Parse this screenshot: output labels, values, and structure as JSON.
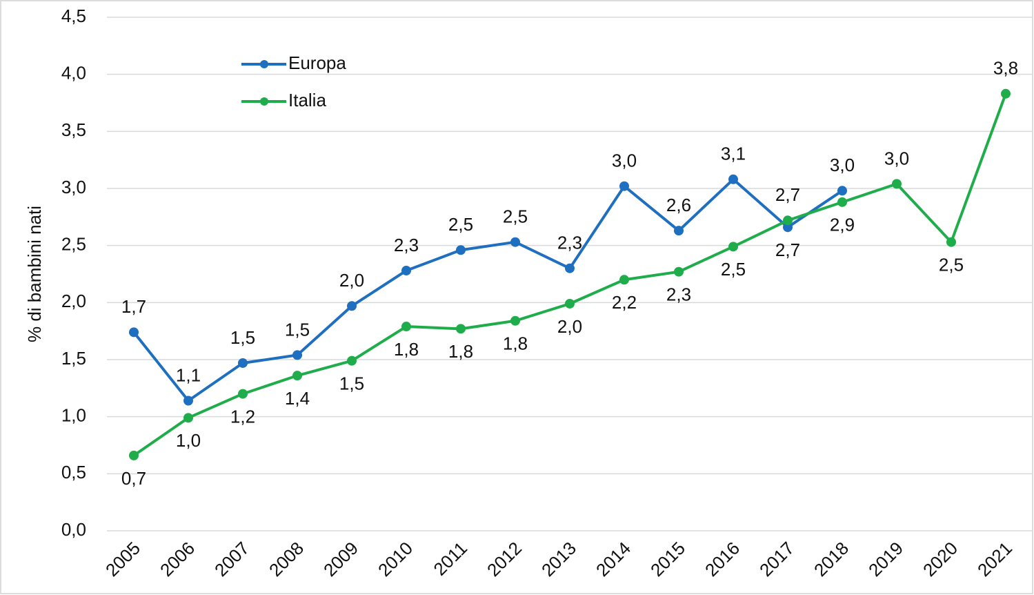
{
  "chart_data": {
    "type": "line",
    "y_label": "% di bambini nati",
    "categories": [
      "2005",
      "2006",
      "2007",
      "2008",
      "2009",
      "2010",
      "2011",
      "2012",
      "2013",
      "2014",
      "2015",
      "2016",
      "2017",
      "2018",
      "2019",
      "2020",
      "2021"
    ],
    "series": [
      {
        "name": "Europa",
        "color": "#1f6fc0",
        "values": [
          1.74,
          1.14,
          1.47,
          1.54,
          1.97,
          2.28,
          2.46,
          2.53,
          2.3,
          3.02,
          2.63,
          3.08,
          2.66,
          2.98,
          null,
          null,
          null
        ],
        "value_labels": [
          "1,7",
          "1,1",
          "1,5",
          "1,5",
          "2,0",
          "2,3",
          "2,5",
          "2,5",
          "2,3",
          "3,0",
          "2,6",
          "3,1",
          "2,7",
          "3,0",
          null,
          null,
          null
        ]
      },
      {
        "name": "Italia",
        "color": "#1fad4b",
        "values": [
          0.66,
          0.99,
          1.2,
          1.36,
          1.49,
          1.79,
          1.77,
          1.84,
          1.99,
          2.2,
          2.27,
          2.49,
          2.72,
          2.88,
          3.04,
          2.53,
          3.83
        ],
        "value_labels": [
          "0,7",
          "1,0",
          "1,2",
          "1,4",
          "1,5",
          "1,8",
          "1,8",
          "1,8",
          "2,0",
          "2,2",
          "2,3",
          "2,5",
          "2,7",
          "2,9",
          "3,0",
          "2,5",
          "3,8"
        ]
      }
    ],
    "ylim": [
      0,
      4.5
    ],
    "yticks": [
      {
        "value": 0,
        "label": "0,0"
      },
      {
        "value": 0.5,
        "label": "0,5"
      },
      {
        "value": 1,
        "label": "1,0"
      },
      {
        "value": 1.5,
        "label": "1,5"
      },
      {
        "value": 2,
        "label": "2,0"
      },
      {
        "value": 2.5,
        "label": "2,5"
      },
      {
        "value": 3,
        "label": "3,0"
      },
      {
        "value": 3.5,
        "label": "3,5"
      },
      {
        "value": 4,
        "label": "4,0"
      },
      {
        "value": 4.5,
        "label": "4,5"
      }
    ],
    "grid": true,
    "legend": "upper left"
  }
}
